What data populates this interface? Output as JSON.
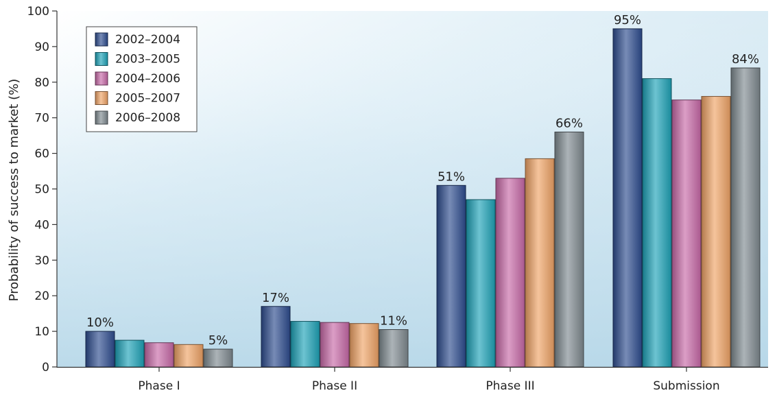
{
  "chart_data": {
    "type": "bar",
    "title": "",
    "xlabel": "",
    "ylabel": "Probability of success to market (%)",
    "ylim": [
      0,
      100
    ],
    "yticks": [
      0,
      10,
      20,
      30,
      40,
      50,
      60,
      70,
      80,
      90,
      100
    ],
    "grid": false,
    "legend_position": "top-left",
    "categories": [
      "Phase I",
      "Phase II",
      "Phase III",
      "Submission"
    ],
    "series": [
      {
        "name": "2002–2004",
        "color": "#2e4d8f",
        "values": [
          10,
          17,
          51,
          95
        ]
      },
      {
        "name": "2003–2005",
        "color": "#1fa3b8",
        "values": [
          7.5,
          12.8,
          47,
          81
        ]
      },
      {
        "name": "2004–2006",
        "color": "#c86aa8",
        "values": [
          6.8,
          12.5,
          53,
          75
        ]
      },
      {
        "name": "2005–2007",
        "color": "#f0a466",
        "values": [
          6.3,
          12.2,
          58.5,
          76
        ]
      },
      {
        "name": "2006–2008",
        "color": "#7f8a90",
        "values": [
          5,
          10.5,
          66,
          84
        ]
      }
    ],
    "annotations": [
      {
        "series": 0,
        "category": 0,
        "text": "10%"
      },
      {
        "series": 4,
        "category": 0,
        "text": "5%"
      },
      {
        "series": 0,
        "category": 1,
        "text": "17%"
      },
      {
        "series": 4,
        "category": 1,
        "text": "11%"
      },
      {
        "series": 0,
        "category": 2,
        "text": "51%"
      },
      {
        "series": 4,
        "category": 2,
        "text": "66%"
      },
      {
        "series": 0,
        "category": 3,
        "text": "95%"
      },
      {
        "series": 4,
        "category": 3,
        "text": "84%"
      }
    ]
  }
}
